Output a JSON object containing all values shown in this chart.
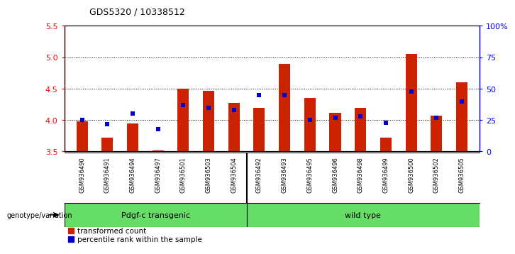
{
  "title": "GDS5320 / 10338512",
  "samples": [
    "GSM936490",
    "GSM936491",
    "GSM936494",
    "GSM936497",
    "GSM936501",
    "GSM936503",
    "GSM936504",
    "GSM936492",
    "GSM936493",
    "GSM936495",
    "GSM936496",
    "GSM936498",
    "GSM936499",
    "GSM936500",
    "GSM936502",
    "GSM936505"
  ],
  "n_transgenic": 7,
  "transformed_count": [
    3.98,
    3.72,
    3.95,
    3.52,
    4.5,
    4.47,
    4.27,
    4.2,
    4.9,
    4.35,
    4.12,
    4.19,
    3.72,
    5.05,
    4.07,
    4.6
  ],
  "percentile_rank": [
    25,
    22,
    30,
    18,
    37,
    35,
    33,
    45,
    45,
    25,
    27,
    28,
    23,
    48,
    27,
    40
  ],
  "ylim_left": [
    3.5,
    5.5
  ],
  "ylim_right": [
    0,
    100
  ],
  "bar_color": "#cc2200",
  "pct_color": "#0000cc",
  "bar_bottom": 3.5,
  "right_ticks": [
    0,
    25,
    50,
    75,
    100
  ],
  "right_tick_labels": [
    "0",
    "25",
    "50",
    "75",
    "100%"
  ],
  "left_ticks": [
    3.5,
    4.0,
    4.5,
    5.0,
    5.5
  ],
  "gridlines": [
    4.0,
    4.5,
    5.0
  ],
  "legend_items": [
    "transformed count",
    "percentile rank within the sample"
  ],
  "genotype_label": "genotype/variation",
  "group1_label": "Pdgf-c transgenic",
  "group2_label": "wild type",
  "bg_color": "#ffffff",
  "tick_label_bg": "#d0d0d0",
  "green_color": "#66dd66"
}
